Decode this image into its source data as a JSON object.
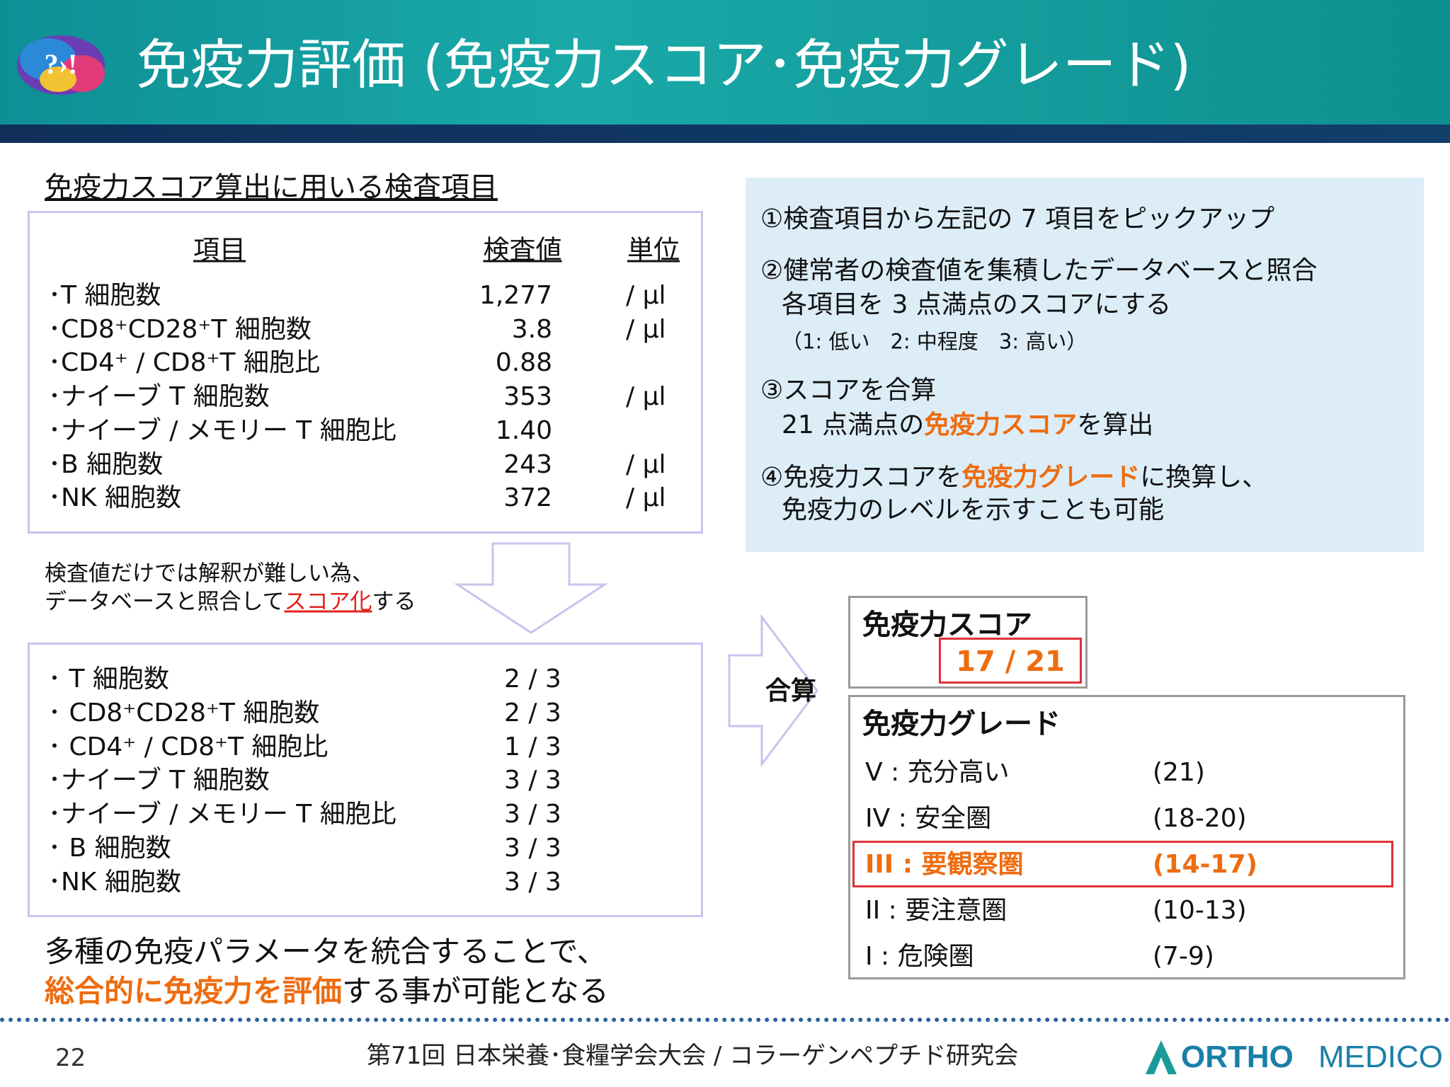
{
  "header": {
    "title": "免疫力評価 (免疫力スコア･免疫力グレード)"
  },
  "items_panel": {
    "heading": "免疫力スコア算出に用いる検査項目",
    "columns": [
      "項目",
      "検査値",
      "単位"
    ],
    "rows": [
      {
        "item": "･T 細胞数",
        "value": "1,277",
        "unit": "/ μl"
      },
      {
        "item": "･CD8⁺CD28⁺T 細胞数",
        "value": "3.8",
        "unit": "/ μl"
      },
      {
        "item": "･CD4⁺ / CD8⁺T 細胞比",
        "value": "0.88"
      },
      {
        "item": "･ナイーブ T 細胞数",
        "value": "353",
        "unit": "/ μl"
      },
      {
        "item": "･ナイーブ / メモリー T 細胞比",
        "value": "1.40"
      },
      {
        "item": "･B 細胞数",
        "value": "243",
        "unit": "/ μl"
      },
      {
        "item": "･NK 細胞数",
        "value": "372",
        "unit": "/ μl"
      }
    ]
  },
  "note": [
    [
      {
        "text": "検査値だけでは解釈が難しい為、"
      }
    ],
    [
      {
        "text": "データベースと照合して"
      },
      {
        "text": "スコア化",
        "em": true
      },
      {
        "text": "する"
      }
    ]
  ],
  "score_panel": {
    "rows": [
      {
        "item": "･ T 細胞数",
        "score": "2 / 3"
      },
      {
        "item": "･ CD8⁺CD28⁺T 細胞数",
        "score": "2 / 3"
      },
      {
        "item": "･ CD4⁺ / CD8⁺T 細胞比",
        "score": "1 / 3"
      },
      {
        "item": "･ナイーブ T 細胞数",
        "score": "3 / 3"
      },
      {
        "item": "･ナイーブ / メモリー T 細胞比",
        "score": "3 / 3"
      },
      {
        "item": "･ B 細胞数",
        "score": "3 / 3"
      },
      {
        "item": "･NK 細胞数",
        "score": "3 / 3"
      }
    ]
  },
  "conclusion": [
    [
      {
        "text": "多種の免疫パラメータを統合することで、"
      }
    ],
    [
      {
        "text": "総合的に免疫力を評価",
        "em": true
      },
      {
        "text": "する事が可能となる"
      }
    ]
  ],
  "steps": [
    [
      {
        "text": "①検査項目から左記の 7 項目をピックアップ"
      }
    ],
    [
      {
        "text": "②健常者の検査値を集積したデータベースと照合"
      }
    ],
    [
      {
        "text": "各項目を 3 点満点のスコアにする"
      }
    ],
    [
      {
        "text": "（1: 低い　2: 中程度　3: 高い）"
      }
    ],
    [
      {
        "text": "③スコアを合算"
      }
    ],
    [
      {
        "text": "21 点満点の"
      },
      {
        "text": "免疫力スコア",
        "em": true
      },
      {
        "text": "を算出"
      }
    ],
    [
      {
        "text": "④免疫力スコアを"
      },
      {
        "text": "免疫力グレード",
        "em": true
      },
      {
        "text": "に換算し、"
      }
    ],
    [
      {
        "text": "免疫力のレベルを示すことも可能"
      }
    ]
  ],
  "sum_label": "合算",
  "score_box": {
    "title": "免疫力スコア",
    "value": "17 / 21"
  },
  "grade_box": {
    "title": "免疫力グレード",
    "rows": [
      {
        "label": "V : 充分高い",
        "range": "(21)"
      },
      {
        "label": "IV : 安全圏",
        "range": "(18-20)"
      },
      {
        "label": "III : 要観察圏",
        "range": "(14-17)",
        "em": true
      },
      {
        "label": "II : 要注意圏",
        "range": "(10-13)"
      },
      {
        "label": "I : 危険圏",
        "range": "(7-9)"
      }
    ]
  },
  "footer": {
    "page": "22",
    "conference": "第71回 日本栄養･食糧学会大会 / コラーゲンペプチド研究会",
    "logo_a": "ORTHO",
    "logo_b": "MEDICO"
  }
}
